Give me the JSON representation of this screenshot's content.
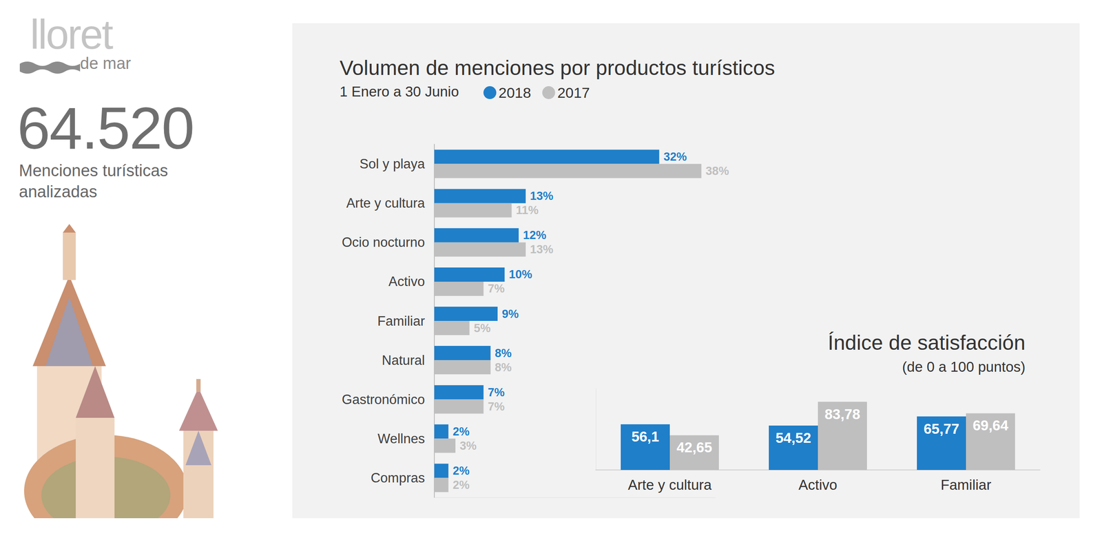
{
  "header": {
    "logo": "lloret",
    "logo_sub": "de mar",
    "total": "64.520",
    "total_caption": "Menciones turísticas analizadas"
  },
  "chart_data": [
    {
      "type": "bar",
      "title": "Volumen de menciones por productos turísticos",
      "subtitle": "1 Enero a 30 Junio",
      "orientation": "horizontal",
      "categories": [
        "Sol y playa",
        "Arte y cultura",
        "Ocio nocturno",
        "Activo",
        "Familiar",
        "Natural",
        "Gastronómico",
        "Wellnes",
        "Compras"
      ],
      "series": [
        {
          "name": "2018",
          "color": "#1f7fc9",
          "values": [
            32,
            13,
            12,
            10,
            9,
            8,
            7,
            2,
            2
          ],
          "value_labels": [
            "32%",
            "13%",
            "12%",
            "10%",
            "9%",
            "8%",
            "7%",
            "2%",
            "2%"
          ]
        },
        {
          "name": "2017",
          "color": "#bfbfbf",
          "values": [
            38,
            11,
            13,
            7,
            5,
            8,
            7,
            3,
            2
          ],
          "value_labels": [
            "38%",
            "11%",
            "13%",
            "7%",
            "5%",
            "8%",
            "7%",
            "3%",
            "2%"
          ]
        }
      ],
      "xlim": [
        0,
        40
      ],
      "grid": false,
      "legend": "top",
      "data_labels": true,
      "tick_labels": "y"
    },
    {
      "type": "bar",
      "title": "Índice de satisfacción",
      "subtitle": "(de 0 a 100 puntos)",
      "categories": [
        "Arte y cultura",
        "Activo",
        "Familiar"
      ],
      "series": [
        {
          "name": "2018",
          "color": "#1f7fc9",
          "values": [
            56.1,
            54.52,
            65.77
          ],
          "value_labels": [
            "56,1",
            "54,52",
            "65,77"
          ]
        },
        {
          "name": "2017",
          "color": "#bfbfbf",
          "values": [
            42.65,
            83.78,
            69.64
          ],
          "value_labels": [
            "42,65",
            "83,78",
            "69,64"
          ]
        }
      ],
      "ylim": [
        0,
        100
      ],
      "grid": false,
      "data_labels": true,
      "tick_labels": "x"
    }
  ]
}
